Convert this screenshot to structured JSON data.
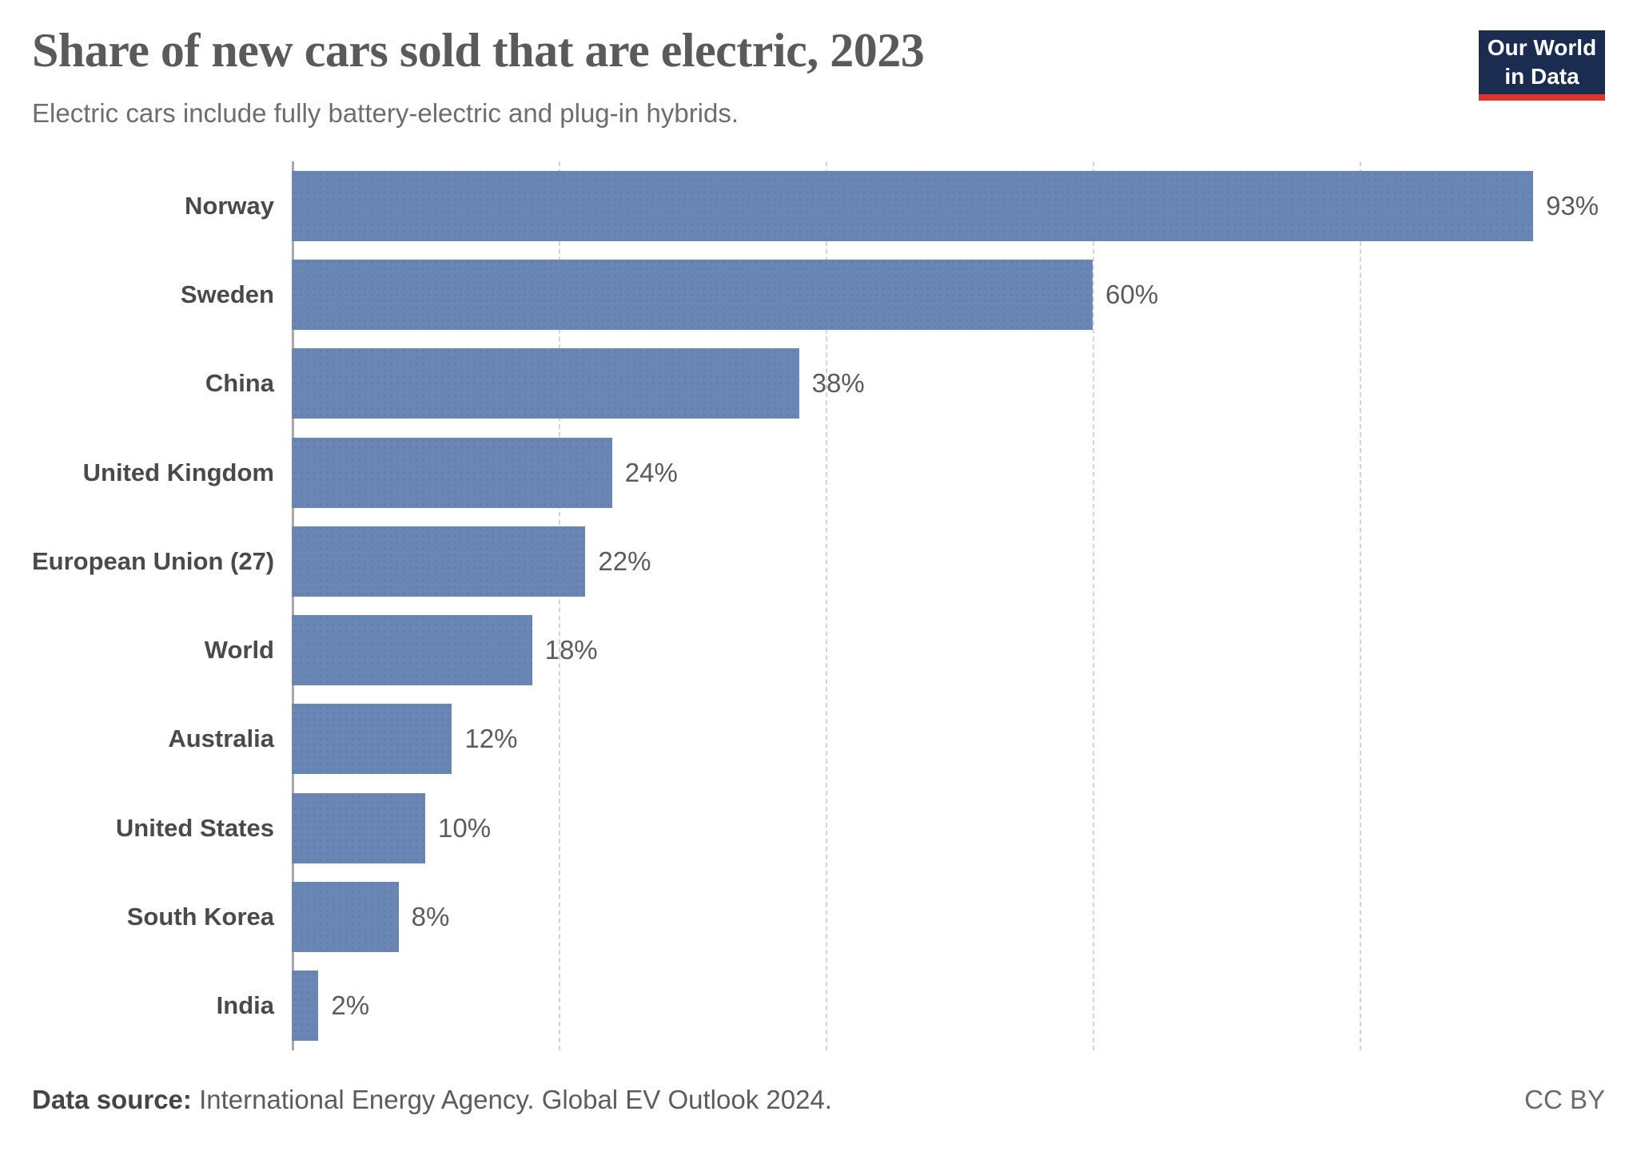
{
  "header": {
    "title": "Share of new cars sold that are electric, 2023",
    "subtitle": "Electric cars include fully battery-electric and plug-in hybrids."
  },
  "logo": {
    "line1": "Our World",
    "line2": "in Data",
    "background_color": "#1b2c51",
    "accent_color": "#dd352c"
  },
  "chart_data": {
    "type": "bar",
    "orientation": "horizontal",
    "title": "Share of new cars sold that are electric, 2023",
    "subtitle": "Electric cars include fully battery-electric and plug-in hybrids.",
    "categories": [
      "Norway",
      "Sweden",
      "China",
      "United Kingdom",
      "European Union (27)",
      "World",
      "Australia",
      "United States",
      "South Korea",
      "India"
    ],
    "values": [
      93,
      60,
      38,
      24,
      22,
      18,
      12,
      10,
      8,
      2
    ],
    "value_labels": [
      "93%",
      "60%",
      "38%",
      "24%",
      "22%",
      "18%",
      "12%",
      "10%",
      "8%",
      "2%"
    ],
    "unit": "%",
    "xlim": [
      0,
      100
    ],
    "gridlines_pct": [
      20,
      40,
      60,
      80
    ],
    "grid_style": "dashed-vertical",
    "legend": "none",
    "bar_color": "#6a86b5"
  },
  "footer": {
    "source_label": "Data source:",
    "source_text": " International Energy Agency. Global EV Outlook 2024.",
    "license": "CC BY"
  }
}
